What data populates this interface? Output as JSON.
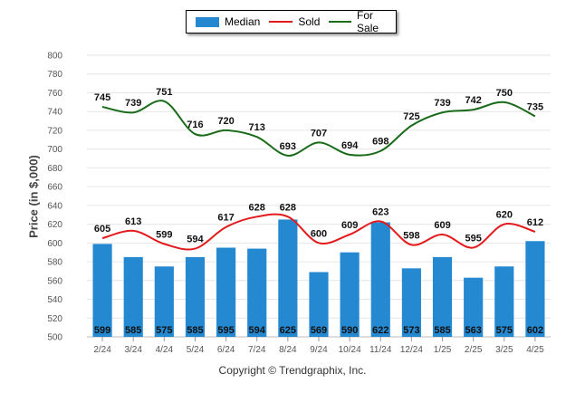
{
  "chart_data": {
    "type": "bar",
    "categories": [
      "2/24",
      "3/24",
      "4/24",
      "5/24",
      "6/24",
      "7/24",
      "8/24",
      "9/24",
      "10/24",
      "11/24",
      "12/24",
      "1/25",
      "2/25",
      "3/25",
      "4/25"
    ],
    "series": [
      {
        "name": "Median",
        "kind": "bar",
        "color": "#2589d1",
        "values": [
          599,
          585,
          575,
          585,
          595,
          594,
          625,
          569,
          590,
          622,
          573,
          585,
          563,
          575,
          602
        ]
      },
      {
        "name": "Sold",
        "kind": "line",
        "color": "#e31a1c",
        "values": [
          605,
          613,
          599,
          594,
          617,
          628,
          628,
          600,
          609,
          623,
          598,
          609,
          595,
          620,
          612
        ]
      },
      {
        "name": "For Sale",
        "kind": "line",
        "color": "#1a6b1a",
        "values": [
          745,
          739,
          751,
          716,
          720,
          713,
          693,
          707,
          694,
          698,
          725,
          739,
          742,
          750,
          735
        ]
      }
    ],
    "ylabel": "Price (in $,000)",
    "ylim": [
      500,
      800
    ],
    "yticks": [
      500,
      520,
      540,
      560,
      580,
      600,
      620,
      640,
      660,
      680,
      700,
      720,
      740,
      760,
      780,
      800
    ],
    "grid": true,
    "legend_position": "top-center"
  },
  "copyright": "Copyright © Trendgraphix, Inc."
}
